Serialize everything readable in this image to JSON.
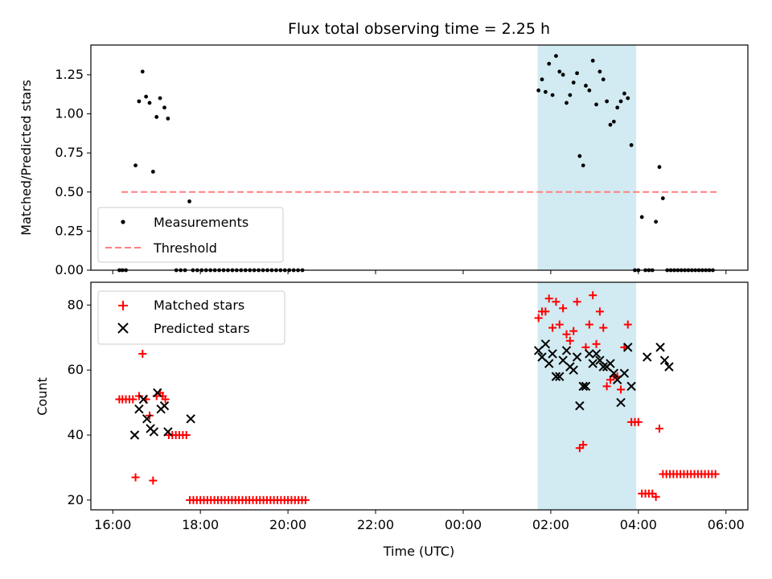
{
  "chart_data": [
    {
      "type": "scatter",
      "title": "Flux total observing time = 2.25 h",
      "xlabel": "",
      "ylabel": "Matched/Predicted stars",
      "ylim": [
        0,
        1.44
      ],
      "yticks": [
        "0.00",
        "0.25",
        "0.50",
        "0.75",
        "1.00",
        "1.25"
      ],
      "legend_position": "lower-left",
      "highlight": {
        "from": 25.7,
        "to": 27.95,
        "color": "#add8e6"
      },
      "threshold": {
        "name": "Threshold",
        "value": 0.5,
        "from": 16.2,
        "to": 29.8,
        "color": "#ff7f7f"
      },
      "series": [
        {
          "name": "Measurements",
          "color": "#000000",
          "points": [
            [
              16.15,
              0
            ],
            [
              16.22,
              0
            ],
            [
              16.3,
              0
            ],
            [
              16.52,
              0.67
            ],
            [
              16.6,
              1.08
            ],
            [
              16.68,
              1.27
            ],
            [
              16.76,
              1.11
            ],
            [
              16.84,
              1.07
            ],
            [
              16.92,
              0.63
            ],
            [
              17.0,
              0.98
            ],
            [
              17.08,
              1.1
            ],
            [
              17.18,
              1.04
            ],
            [
              17.26,
              0.97
            ],
            [
              17.45,
              0
            ],
            [
              17.55,
              0
            ],
            [
              17.65,
              0
            ],
            [
              17.75,
              0.44
            ],
            [
              17.83,
              0
            ],
            [
              17.93,
              0
            ],
            [
              18.03,
              0
            ],
            [
              18.13,
              0
            ],
            [
              18.23,
              0
            ],
            [
              18.33,
              0
            ],
            [
              18.43,
              0
            ],
            [
              18.53,
              0
            ],
            [
              18.63,
              0
            ],
            [
              18.73,
              0
            ],
            [
              18.83,
              0
            ],
            [
              18.93,
              0
            ],
            [
              19.03,
              0
            ],
            [
              19.13,
              0
            ],
            [
              19.23,
              0
            ],
            [
              19.33,
              0
            ],
            [
              19.43,
              0
            ],
            [
              19.53,
              0
            ],
            [
              19.63,
              0
            ],
            [
              19.73,
              0
            ],
            [
              19.83,
              0
            ],
            [
              19.93,
              0
            ],
            [
              20.03,
              0
            ],
            [
              20.13,
              0
            ],
            [
              20.23,
              0
            ],
            [
              20.33,
              0
            ],
            [
              25.72,
              1.15
            ],
            [
              25.8,
              1.22
            ],
            [
              25.88,
              1.14
            ],
            [
              25.96,
              1.32
            ],
            [
              26.04,
              1.12
            ],
            [
              26.12,
              1.37
            ],
            [
              26.2,
              1.27
            ],
            [
              26.28,
              1.25
            ],
            [
              26.36,
              1.07
            ],
            [
              26.44,
              1.12
            ],
            [
              26.52,
              1.2
            ],
            [
              26.6,
              1.26
            ],
            [
              26.66,
              0.73
            ],
            [
              26.74,
              0.67
            ],
            [
              26.8,
              1.18
            ],
            [
              26.88,
              1.15
            ],
            [
              26.96,
              1.34
            ],
            [
              27.04,
              1.06
            ],
            [
              27.12,
              1.27
            ],
            [
              27.2,
              1.22
            ],
            [
              27.28,
              1.08
            ],
            [
              27.36,
              0.93
            ],
            [
              27.44,
              0.95
            ],
            [
              27.52,
              1.04
            ],
            [
              27.6,
              1.08
            ],
            [
              27.68,
              1.13
            ],
            [
              27.76,
              1.1
            ],
            [
              27.84,
              0.8
            ],
            [
              27.92,
              0
            ],
            [
              28.0,
              0
            ],
            [
              28.08,
              0.34
            ],
            [
              28.16,
              0
            ],
            [
              28.24,
              0
            ],
            [
              28.32,
              0
            ],
            [
              28.4,
              0.31
            ],
            [
              28.48,
              0.66
            ],
            [
              28.56,
              0.46
            ],
            [
              28.66,
              0
            ],
            [
              28.74,
              0
            ],
            [
              28.82,
              0
            ],
            [
              28.9,
              0
            ],
            [
              28.98,
              0
            ],
            [
              29.06,
              0
            ],
            [
              29.14,
              0
            ],
            [
              29.22,
              0
            ],
            [
              29.3,
              0
            ],
            [
              29.38,
              0
            ],
            [
              29.46,
              0
            ],
            [
              29.54,
              0
            ],
            [
              29.62,
              0
            ],
            [
              29.7,
              0
            ]
          ]
        }
      ]
    },
    {
      "type": "scatter",
      "xlabel": "Time (UTC)",
      "ylabel": "Count",
      "ylim": [
        17,
        87
      ],
      "yticks": [
        "20",
        "40",
        "60",
        "80"
      ],
      "xlim": [
        "2024-01-01T15:30",
        "2024-01-02T06:30"
      ],
      "xticks": [
        "16:00",
        "18:00",
        "20:00",
        "22:00",
        "00:00",
        "02:00",
        "04:00",
        "06:00"
      ],
      "legend_position": "upper-left",
      "highlight": {
        "from": 25.7,
        "to": 27.95,
        "color": "#add8e6"
      },
      "series": [
        {
          "name": "Matched stars",
          "marker": "plus",
          "color": "#ff0000",
          "points": [
            [
              16.15,
              51
            ],
            [
              16.22,
              51
            ],
            [
              16.3,
              51
            ],
            [
              16.38,
              51
            ],
            [
              16.46,
              51
            ],
            [
              16.52,
              27
            ],
            [
              16.6,
              52
            ],
            [
              16.68,
              65
            ],
            [
              16.76,
              51
            ],
            [
              16.84,
              46
            ],
            [
              16.92,
              26
            ],
            [
              17.0,
              52
            ],
            [
              17.08,
              53
            ],
            [
              17.14,
              52
            ],
            [
              17.2,
              51
            ],
            [
              17.28,
              40
            ],
            [
              17.36,
              40
            ],
            [
              17.44,
              40
            ],
            [
              17.52,
              40
            ],
            [
              17.6,
              40
            ],
            [
              17.68,
              40
            ],
            [
              17.76,
              20
            ],
            [
              17.84,
              20
            ],
            [
              17.92,
              20
            ],
            [
              18.0,
              20
            ],
            [
              18.08,
              20
            ],
            [
              18.16,
              20
            ],
            [
              18.24,
              20
            ],
            [
              18.32,
              20
            ],
            [
              18.4,
              20
            ],
            [
              18.48,
              20
            ],
            [
              18.56,
              20
            ],
            [
              18.64,
              20
            ],
            [
              18.72,
              20
            ],
            [
              18.8,
              20
            ],
            [
              18.88,
              20
            ],
            [
              18.96,
              20
            ],
            [
              19.04,
              20
            ],
            [
              19.12,
              20
            ],
            [
              19.2,
              20
            ],
            [
              19.28,
              20
            ],
            [
              19.36,
              20
            ],
            [
              19.44,
              20
            ],
            [
              19.52,
              20
            ],
            [
              19.6,
              20
            ],
            [
              19.68,
              20
            ],
            [
              19.76,
              20
            ],
            [
              19.84,
              20
            ],
            [
              19.92,
              20
            ],
            [
              20.0,
              20
            ],
            [
              20.08,
              20
            ],
            [
              20.16,
              20
            ],
            [
              20.24,
              20
            ],
            [
              20.32,
              20
            ],
            [
              20.4,
              20
            ],
            [
              25.72,
              76
            ],
            [
              25.8,
              78
            ],
            [
              25.88,
              78
            ],
            [
              25.96,
              82
            ],
            [
              26.04,
              73
            ],
            [
              26.12,
              81
            ],
            [
              26.2,
              74
            ],
            [
              26.28,
              79
            ],
            [
              26.36,
              71
            ],
            [
              26.44,
              69
            ],
            [
              26.52,
              72
            ],
            [
              26.6,
              81
            ],
            [
              26.66,
              36
            ],
            [
              26.74,
              37
            ],
            [
              26.8,
              67
            ],
            [
              26.88,
              74
            ],
            [
              26.96,
              83
            ],
            [
              27.04,
              68
            ],
            [
              27.12,
              78
            ],
            [
              27.2,
              73
            ],
            [
              27.28,
              55
            ],
            [
              27.36,
              57
            ],
            [
              27.44,
              58
            ],
            [
              27.52,
              58
            ],
            [
              27.6,
              54
            ],
            [
              27.68,
              67
            ],
            [
              27.76,
              74
            ],
            [
              27.84,
              44
            ],
            [
              27.92,
              44
            ],
            [
              28.0,
              44
            ],
            [
              28.08,
              22
            ],
            [
              28.16,
              22
            ],
            [
              28.24,
              22
            ],
            [
              28.32,
              22
            ],
            [
              28.4,
              21
            ],
            [
              28.48,
              42
            ],
            [
              28.56,
              28
            ],
            [
              28.64,
              28
            ],
            [
              28.72,
              28
            ],
            [
              28.8,
              28
            ],
            [
              28.88,
              28
            ],
            [
              28.96,
              28
            ],
            [
              29.04,
              28
            ],
            [
              29.12,
              28
            ],
            [
              29.2,
              28
            ],
            [
              29.28,
              28
            ],
            [
              29.36,
              28
            ],
            [
              29.44,
              28
            ],
            [
              29.52,
              28
            ],
            [
              29.6,
              28
            ],
            [
              29.68,
              28
            ],
            [
              29.76,
              28
            ]
          ]
        },
        {
          "name": "Predicted stars",
          "marker": "x",
          "color": "#000000",
          "points": [
            [
              16.5,
              40
            ],
            [
              16.6,
              48
            ],
            [
              16.7,
              51
            ],
            [
              16.78,
              45
            ],
            [
              16.86,
              42
            ],
            [
              16.94,
              41
            ],
            [
              17.02,
              53
            ],
            [
              17.1,
              48
            ],
            [
              17.18,
              49
            ],
            [
              17.26,
              41
            ],
            [
              17.78,
              45
            ],
            [
              25.72,
              66
            ],
            [
              25.8,
              64
            ],
            [
              25.88,
              68
            ],
            [
              25.96,
              62
            ],
            [
              26.04,
              65
            ],
            [
              26.12,
              58
            ],
            [
              26.2,
              58
            ],
            [
              26.28,
              63
            ],
            [
              26.36,
              66
            ],
            [
              26.44,
              61
            ],
            [
              26.52,
              60
            ],
            [
              26.6,
              64
            ],
            [
              26.66,
              49
            ],
            [
              26.74,
              55
            ],
            [
              26.8,
              55
            ],
            [
              26.88,
              65
            ],
            [
              26.96,
              62
            ],
            [
              27.04,
              65
            ],
            [
              27.12,
              63
            ],
            [
              27.2,
              61
            ],
            [
              27.28,
              61
            ],
            [
              27.36,
              62
            ],
            [
              27.44,
              59
            ],
            [
              27.52,
              57
            ],
            [
              27.6,
              50
            ],
            [
              27.68,
              59
            ],
            [
              27.76,
              67
            ],
            [
              27.84,
              55
            ],
            [
              28.2,
              64
            ],
            [
              28.5,
              67
            ],
            [
              28.6,
              63
            ],
            [
              28.7,
              61
            ]
          ]
        },
        {
          "name": "Threshold",
          "in_legend_only_of_panel": 0
        }
      ]
    }
  ]
}
